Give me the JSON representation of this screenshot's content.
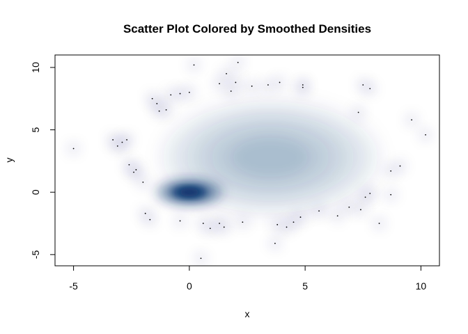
{
  "chart_data": {
    "type": "scatter",
    "title": "Scatter Plot Colored by Smoothed Densities",
    "xlabel": "x",
    "ylabel": "y",
    "xlim": [
      -5.8,
      10.8
    ],
    "ylim": [
      -5.9,
      11.0
    ],
    "xticks": [
      "-5",
      "0",
      "5",
      "10"
    ],
    "yticks": [
      "-5",
      "0",
      "5",
      "10"
    ],
    "xtick_values": [
      -5,
      0,
      5,
      10
    ],
    "ytick_values": [
      -5,
      0,
      5,
      10
    ],
    "grid": false,
    "legend": "none",
    "density_color": "#08306b",
    "point_color": "#000000",
    "density_clusters": [
      {
        "name": "dense cluster",
        "center": [
          0,
          0
        ],
        "spread": [
          1.1,
          0.85
        ],
        "weight": 1.0
      },
      {
        "name": "diffuse cloud",
        "center": [
          3.5,
          2.8
        ],
        "spread": [
          3.2,
          3.3
        ],
        "weight": 0.4
      }
    ],
    "outlier_points": [
      [
        -5.0,
        3.5
      ],
      [
        -3.3,
        4.2
      ],
      [
        -2.9,
        4.0
      ],
      [
        -2.7,
        4.2
      ],
      [
        -3.1,
        3.7
      ],
      [
        -2.4,
        1.6
      ],
      [
        -2.6,
        2.2
      ],
      [
        -2.3,
        1.8
      ],
      [
        -2.0,
        0.8
      ],
      [
        -1.6,
        7.5
      ],
      [
        -1.4,
        7.1
      ],
      [
        -1.3,
        6.5
      ],
      [
        -0.8,
        7.8
      ],
      [
        -0.4,
        7.9
      ],
      [
        0.0,
        8.0
      ],
      [
        -1.0,
        6.6
      ],
      [
        0.2,
        10.2
      ],
      [
        1.3,
        8.7
      ],
      [
        1.6,
        9.5
      ],
      [
        2.1,
        10.4
      ],
      [
        1.8,
        8.1
      ],
      [
        2.0,
        8.8
      ],
      [
        2.7,
        8.5
      ],
      [
        3.4,
        8.6
      ],
      [
        3.9,
        8.8
      ],
      [
        4.9,
        8.6
      ],
      [
        4.9,
        8.4
      ],
      [
        7.5,
        8.6
      ],
      [
        7.8,
        8.3
      ],
      [
        7.3,
        6.4
      ],
      [
        9.6,
        5.8
      ],
      [
        10.2,
        4.6
      ],
      [
        9.1,
        2.1
      ],
      [
        8.7,
        1.7
      ],
      [
        7.8,
        -0.1
      ],
      [
        7.6,
        -0.4
      ],
      [
        8.7,
        -0.2
      ],
      [
        8.2,
        -2.5
      ],
      [
        7.4,
        -1.4
      ],
      [
        6.9,
        -1.2
      ],
      [
        6.4,
        -1.9
      ],
      [
        5.6,
        -1.5
      ],
      [
        4.8,
        -2.0
      ],
      [
        4.5,
        -2.4
      ],
      [
        4.2,
        -2.8
      ],
      [
        3.8,
        -2.6
      ],
      [
        3.7,
        -4.1
      ],
      [
        2.3,
        -2.4
      ],
      [
        1.3,
        -2.5
      ],
      [
        1.5,
        -2.8
      ],
      [
        0.9,
        -2.9
      ],
      [
        0.6,
        -2.5
      ],
      [
        0.5,
        -5.3
      ],
      [
        -0.4,
        -2.3
      ],
      [
        -1.7,
        -2.2
      ],
      [
        -1.9,
        -1.7
      ]
    ]
  }
}
